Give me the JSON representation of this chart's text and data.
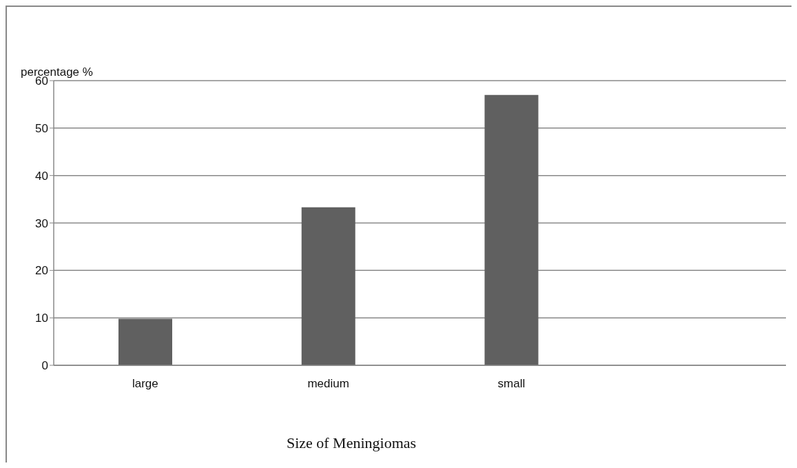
{
  "chart_data": {
    "type": "bar",
    "categories": [
      "large",
      "medium",
      "small",
      null
    ],
    "values": [
      9.8,
      33.3,
      57,
      null
    ],
    "color": "#606060",
    "ylim": [
      0,
      60
    ],
    "yticks": [
      0,
      10,
      20,
      30,
      40,
      50,
      60
    ],
    "xlabel": "Size of Meningiomas",
    "ylabel": "percentage %",
    "grid": "y",
    "legend": false
  }
}
